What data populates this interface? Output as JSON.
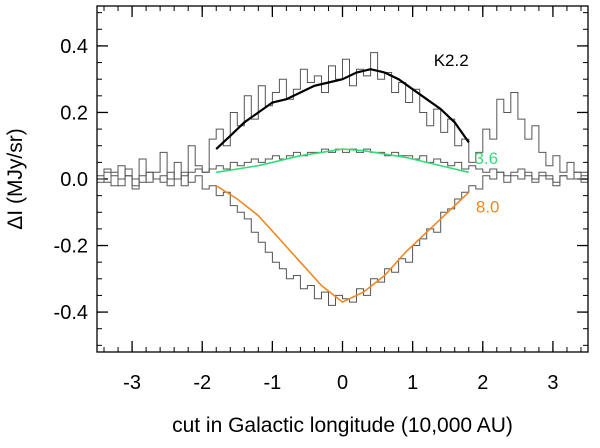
{
  "chart_data": {
    "type": "line",
    "title": "",
    "xlabel": "cut in Galactic longitude (10,000 AU)",
    "ylabel": "ΔI (MJy/sr)",
    "xlim": [
      -3.5,
      3.5
    ],
    "ylim": [
      -0.52,
      0.52
    ],
    "x_ticks": [
      -3,
      -2,
      -1,
      0,
      1,
      2,
      3
    ],
    "x_tick_labels": [
      "-3",
      "-2",
      "-1",
      "0",
      "1",
      "2",
      "3"
    ],
    "y_ticks": [
      -0.4,
      -0.2,
      0.0,
      0.2,
      0.4
    ],
    "y_tick_labels": [
      "-0.4",
      "-0.2",
      "0.0",
      "0.2",
      "0.4"
    ],
    "x_minor_step": 0.2,
    "y_minor_step": 0.05,
    "grid": false,
    "series": [
      {
        "name": "K2.2 data",
        "style": "step",
        "color": "#555555",
        "x": [
          -3.5,
          -3.4,
          -3.3,
          -3.2,
          -3.1,
          -3.0,
          -2.9,
          -2.8,
          -2.7,
          -2.6,
          -2.5,
          -2.4,
          -2.3,
          -2.2,
          -2.1,
          -2.0,
          -1.9,
          -1.8,
          -1.7,
          -1.6,
          -1.5,
          -1.4,
          -1.3,
          -1.2,
          -1.1,
          -1.0,
          -0.9,
          -0.8,
          -0.7,
          -0.6,
          -0.5,
          -0.4,
          -0.3,
          -0.2,
          -0.1,
          0.0,
          0.1,
          0.2,
          0.3,
          0.4,
          0.5,
          0.6,
          0.7,
          0.8,
          0.9,
          1.0,
          1.1,
          1.2,
          1.3,
          1.4,
          1.5,
          1.6,
          1.7,
          1.8,
          1.9,
          2.0,
          2.1,
          2.2,
          2.3,
          2.4,
          2.5,
          2.6,
          2.7,
          2.8,
          2.9,
          3.0,
          3.1,
          3.2,
          3.3,
          3.4
        ],
        "values": [
          0.0,
          0.03,
          -0.02,
          0.04,
          0.01,
          -0.03,
          0.06,
          -0.01,
          0.02,
          0.08,
          0.0,
          0.05,
          -0.02,
          0.1,
          0.04,
          0.02,
          0.12,
          0.15,
          0.1,
          0.2,
          0.16,
          0.25,
          0.18,
          0.28,
          0.22,
          0.26,
          0.3,
          0.24,
          0.27,
          0.33,
          0.29,
          0.31,
          0.26,
          0.34,
          0.3,
          0.36,
          0.28,
          0.33,
          0.31,
          0.38,
          0.3,
          0.32,
          0.26,
          0.29,
          0.23,
          0.27,
          0.2,
          0.16,
          0.21,
          0.14,
          0.18,
          0.1,
          0.12,
          0.05,
          0.08,
          0.15,
          0.12,
          0.24,
          0.2,
          0.26,
          0.18,
          0.12,
          0.16,
          0.08,
          0.04,
          0.07,
          0.02,
          0.05,
          0.0,
          0.02
        ]
      },
      {
        "name": "3.6 data",
        "style": "step",
        "color": "#555555",
        "x": [
          -3.5,
          -3.4,
          -3.3,
          -3.2,
          -3.1,
          -3.0,
          -2.9,
          -2.8,
          -2.7,
          -2.6,
          -2.5,
          -2.4,
          -2.3,
          -2.2,
          -2.1,
          -2.0,
          -1.9,
          -1.8,
          -1.7,
          -1.6,
          -1.5,
          -1.4,
          -1.3,
          -1.2,
          -1.1,
          -1.0,
          -0.9,
          -0.8,
          -0.7,
          -0.6,
          -0.5,
          -0.4,
          -0.3,
          -0.2,
          -0.1,
          0.0,
          0.1,
          0.2,
          0.3,
          0.4,
          0.5,
          0.6,
          0.7,
          0.8,
          0.9,
          1.0,
          1.1,
          1.2,
          1.3,
          1.4,
          1.5,
          1.6,
          1.7,
          1.8,
          1.9,
          2.0,
          2.1,
          2.2,
          2.3,
          2.4,
          2.5,
          2.6,
          2.7,
          2.8,
          2.9,
          3.0,
          3.1,
          3.2,
          3.3,
          3.4
        ],
        "values": [
          0.01,
          -0.01,
          0.02,
          0.0,
          0.01,
          -0.02,
          0.01,
          0.02,
          0.0,
          -0.01,
          0.02,
          0.0,
          0.01,
          0.02,
          0.03,
          0.02,
          0.03,
          0.04,
          0.03,
          0.05,
          0.04,
          0.05,
          0.06,
          0.05,
          0.06,
          0.07,
          0.06,
          0.07,
          0.08,
          0.07,
          0.08,
          0.08,
          0.09,
          0.08,
          0.09,
          0.08,
          0.09,
          0.08,
          0.09,
          0.08,
          0.08,
          0.07,
          0.08,
          0.07,
          0.07,
          0.06,
          0.07,
          0.05,
          0.06,
          0.05,
          0.04,
          0.05,
          0.03,
          0.04,
          0.03,
          0.02,
          0.03,
          0.02,
          0.01,
          0.02,
          0.03,
          0.01,
          0.0,
          0.02,
          0.01,
          -0.01,
          0.01,
          0.0,
          0.02,
          0.01
        ]
      },
      {
        "name": "8.0 data",
        "style": "step",
        "color": "#555555",
        "x": [
          -3.5,
          -3.4,
          -3.3,
          -3.2,
          -3.1,
          -3.0,
          -2.9,
          -2.8,
          -2.7,
          -2.6,
          -2.5,
          -2.4,
          -2.3,
          -2.2,
          -2.1,
          -2.0,
          -1.9,
          -1.8,
          -1.7,
          -1.6,
          -1.5,
          -1.4,
          -1.3,
          -1.2,
          -1.1,
          -1.0,
          -0.9,
          -0.8,
          -0.7,
          -0.6,
          -0.5,
          -0.4,
          -0.3,
          -0.2,
          -0.1,
          0.0,
          0.1,
          0.2,
          0.3,
          0.4,
          0.5,
          0.6,
          0.7,
          0.8,
          0.9,
          1.0,
          1.1,
          1.2,
          1.3,
          1.4,
          1.5,
          1.6,
          1.7,
          1.8,
          1.9,
          2.0,
          2.1,
          2.2,
          2.3,
          2.4,
          2.5,
          2.6,
          2.7,
          2.8,
          2.9,
          3.0,
          3.1,
          3.2,
          3.3,
          3.4
        ],
        "values": [
          -0.01,
          0.02,
          0.01,
          -0.02,
          0.03,
          0.0,
          -0.01,
          0.02,
          0.0,
          0.01,
          -0.02,
          0.0,
          0.02,
          -0.01,
          0.01,
          -0.03,
          -0.02,
          -0.05,
          -0.04,
          -0.08,
          -0.1,
          -0.12,
          -0.16,
          -0.19,
          -0.22,
          -0.25,
          -0.27,
          -0.3,
          -0.29,
          -0.33,
          -0.32,
          -0.36,
          -0.34,
          -0.38,
          -0.35,
          -0.36,
          -0.37,
          -0.33,
          -0.35,
          -0.3,
          -0.31,
          -0.27,
          -0.28,
          -0.24,
          -0.25,
          -0.2,
          -0.18,
          -0.15,
          -0.16,
          -0.1,
          -0.09,
          -0.06,
          -0.04,
          -0.02,
          -0.03,
          0.01,
          0.0,
          0.02,
          -0.01,
          0.01,
          0.0,
          0.02,
          -0.01,
          0.01,
          0.0,
          -0.02,
          0.01,
          0.0,
          0.02,
          -0.01
        ]
      },
      {
        "name": "K2.2",
        "style": "line",
        "color": "#000000",
        "label": "K2.2",
        "label_color": "#000000",
        "x": [
          -1.8,
          -1.6,
          -1.4,
          -1.2,
          -1.0,
          -0.8,
          -0.6,
          -0.4,
          -0.2,
          0.0,
          0.2,
          0.4,
          0.6,
          0.8,
          1.0,
          1.2,
          1.4,
          1.6,
          1.8
        ],
        "values": [
          0.09,
          0.13,
          0.17,
          0.2,
          0.23,
          0.24,
          0.26,
          0.28,
          0.29,
          0.3,
          0.32,
          0.33,
          0.32,
          0.3,
          0.27,
          0.24,
          0.21,
          0.17,
          0.11
        ]
      },
      {
        "name": "3.6",
        "style": "line",
        "color": "#33dd77",
        "label": "3.6",
        "label_color": "#33dd77",
        "x": [
          -1.8,
          -1.5,
          -1.2,
          -0.9,
          -0.6,
          -0.3,
          0.0,
          0.3,
          0.6,
          0.9,
          1.2,
          1.5,
          1.8
        ],
        "values": [
          0.02,
          0.03,
          0.04,
          0.055,
          0.07,
          0.08,
          0.09,
          0.085,
          0.075,
          0.065,
          0.05,
          0.035,
          0.02
        ]
      },
      {
        "name": "8.0",
        "style": "line",
        "color": "#ee8822",
        "label": "8.0",
        "label_color": "#ee8822",
        "x": [
          -1.8,
          -1.5,
          -1.2,
          -0.9,
          -0.6,
          -0.3,
          0.0,
          0.3,
          0.6,
          0.9,
          1.2,
          1.5,
          1.8
        ],
        "values": [
          -0.02,
          -0.06,
          -0.11,
          -0.18,
          -0.25,
          -0.32,
          -0.37,
          -0.34,
          -0.29,
          -0.22,
          -0.16,
          -0.1,
          -0.04
        ]
      }
    ]
  }
}
